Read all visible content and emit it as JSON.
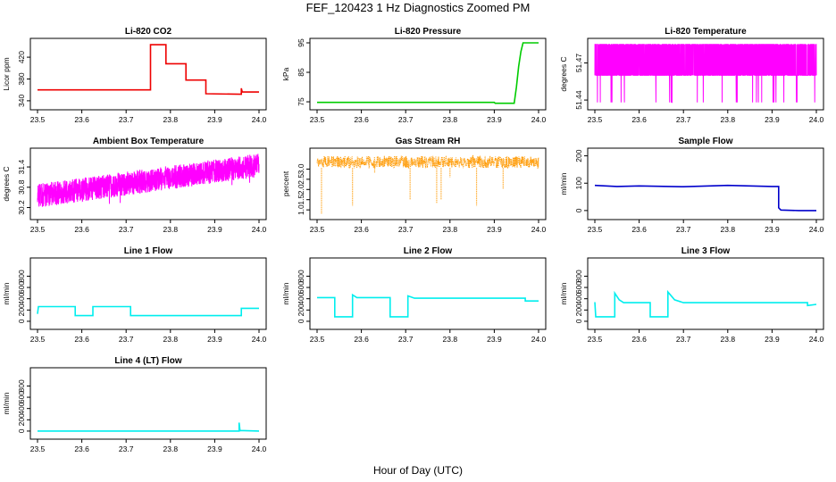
{
  "figure": {
    "title": "FEF_120423  1 Hz Diagnostics Zoomed PM",
    "xlabel": "Hour of Day (UTC)"
  },
  "colors": {
    "red": "#ee0000",
    "green": "#00cc00",
    "magenta": "#ff00ff",
    "orange": "#ff9900",
    "blue": "#0000cc",
    "cyan": "#00eeee"
  },
  "chart_data": [
    {
      "id": "co2",
      "type": "line",
      "title": "Li-820 CO2",
      "ylabel": "Licor ppm",
      "color_key": "red",
      "xlim": [
        23.5,
        24.0
      ],
      "ylim": [
        330,
        448
      ],
      "x_ticks": [
        "23.5",
        "23.6",
        "23.7",
        "23.8",
        "23.9",
        "24.0"
      ],
      "y_ticks": [
        "340",
        "380",
        "420"
      ],
      "style": "step",
      "series": [
        [
          23.5,
          360
        ],
        [
          23.755,
          360
        ],
        [
          23.755,
          443
        ],
        [
          23.79,
          443
        ],
        [
          23.79,
          408
        ],
        [
          23.835,
          408
        ],
        [
          23.835,
          380
        ],
        [
          23.835,
          378
        ],
        [
          23.88,
          378
        ],
        [
          23.88,
          353
        ],
        [
          23.96,
          352
        ],
        [
          23.96,
          363
        ],
        [
          23.962,
          356
        ],
        [
          24.0,
          356
        ]
      ]
    },
    {
      "id": "pressure",
      "type": "line",
      "title": "Li-820 Pressure",
      "ylabel": "kPa",
      "color_key": "green",
      "xlim": [
        23.5,
        24.0
      ],
      "ylim": [
        73.5,
        95.3
      ],
      "x_ticks": [
        "23.5",
        "23.6",
        "23.7",
        "23.8",
        "23.9",
        "24.0"
      ],
      "y_ticks": [
        "75",
        "85",
        "95"
      ],
      "style": "step",
      "series": [
        [
          23.5,
          74.8
        ],
        [
          23.9,
          74.8
        ],
        [
          23.902,
          74.5
        ],
        [
          23.945,
          74.5
        ],
        [
          23.95,
          80
        ],
        [
          23.955,
          87
        ],
        [
          23.96,
          92
        ],
        [
          23.965,
          95
        ],
        [
          24.0,
          95
        ]
      ]
    },
    {
      "id": "licor-temp",
      "type": "line",
      "title": "Li-820 Temperature",
      "ylabel": "degrees C",
      "color_key": "magenta",
      "xlim": [
        23.5,
        24.0
      ],
      "ylim": [
        51.435,
        51.487
      ],
      "x_ticks": [
        "23.5",
        "23.6",
        "23.7",
        "23.8",
        "23.9",
        "24.0"
      ],
      "y_ticks": [
        "51.44",
        "51.47"
      ],
      "style": "noise",
      "noise": {
        "lo": 51.46,
        "hi": 51.485,
        "dip": 51.438,
        "n": 1800,
        "dip_rate": 0.012
      }
    },
    {
      "id": "ambient-temp",
      "type": "line",
      "title": "Ambient Box Temperature",
      "ylabel": "degrees C",
      "color_key": "magenta",
      "xlim": [
        23.5,
        24.0
      ],
      "ylim": [
        29.95,
        31.85
      ],
      "x_ticks": [
        "23.5",
        "23.6",
        "23.7",
        "23.8",
        "23.9",
        "24.0"
      ],
      "y_ticks": [
        "30.2",
        "30.8",
        "31.4"
      ],
      "style": "noise",
      "noise": {
        "start": 30.55,
        "end": 31.45,
        "band": 0.35,
        "n": 1800,
        "dip": 0.35,
        "dip_rate": 0.02
      }
    },
    {
      "id": "rh",
      "type": "scatter",
      "title": "Gas Stream RH",
      "ylabel": "percent",
      "color_key": "orange",
      "xlim": [
        23.5,
        24.0
      ],
      "ylim": [
        0.7,
        3.85
      ],
      "x_ticks": [
        "23.5",
        "23.6",
        "23.7",
        "23.8",
        "23.9",
        "24.0"
      ],
      "y_ticks": [
        "1.0",
        "1.5",
        "2.0",
        "2.5",
        "3.0"
      ],
      "style": "noise",
      "noise": {
        "lo": 3.05,
        "hi": 3.65,
        "n": 900
      },
      "dips": [
        [
          23.51,
          0.8
        ],
        [
          23.58,
          1.2
        ],
        [
          23.71,
          1.5
        ],
        [
          23.77,
          1.3
        ],
        [
          23.78,
          1.5
        ],
        [
          23.86,
          1.2
        ],
        [
          23.92,
          2.0
        ],
        [
          23.63,
          2.8
        ],
        [
          23.8,
          2.6
        ]
      ]
    },
    {
      "id": "sample-flow",
      "type": "line",
      "title": "Sample Flow",
      "ylabel": "ml/min",
      "color_key": "blue",
      "xlim": [
        23.5,
        24.0
      ],
      "ylim": [
        -20,
        215
      ],
      "x_ticks": [
        "23.5",
        "23.6",
        "23.7",
        "23.8",
        "23.9",
        "24.0"
      ],
      "y_ticks": [
        "0",
        "100",
        "200"
      ],
      "style": "step",
      "series": [
        [
          23.5,
          92
        ],
        [
          23.55,
          88
        ],
        [
          23.6,
          90
        ],
        [
          23.7,
          87
        ],
        [
          23.8,
          92
        ],
        [
          23.9,
          88
        ],
        [
          23.915,
          88
        ],
        [
          23.915,
          10
        ],
        [
          23.92,
          2
        ],
        [
          23.96,
          0
        ],
        [
          24.0,
          0
        ]
      ]
    },
    {
      "id": "line1-flow",
      "type": "line",
      "title": "Line 1 Flow",
      "ylabel": "ml/min",
      "color_key": "cyan",
      "xlim": [
        23.5,
        24.0
      ],
      "ylim": [
        -80,
        1060
      ],
      "x_ticks": [
        "23.5",
        "23.6",
        "23.7",
        "23.8",
        "23.9",
        "24.0"
      ],
      "y_ticks": [
        "0",
        "200",
        "400",
        "600",
        "800"
      ],
      "style": "step",
      "series": [
        [
          23.5,
          130
        ],
        [
          23.502,
          260
        ],
        [
          23.585,
          260
        ],
        [
          23.585,
          100
        ],
        [
          23.625,
          100
        ],
        [
          23.625,
          260
        ],
        [
          23.71,
          260
        ],
        [
          23.71,
          100
        ],
        [
          23.96,
          100
        ],
        [
          23.96,
          230
        ],
        [
          24.0,
          230
        ]
      ]
    },
    {
      "id": "line2-flow",
      "type": "line",
      "title": "Line 2 Flow",
      "ylabel": "ml/min",
      "color_key": "cyan",
      "xlim": [
        23.5,
        24.0
      ],
      "ylim": [
        -80,
        1060
      ],
      "x_ticks": [
        "23.5",
        "23.6",
        "23.7",
        "23.8",
        "23.9",
        "24.0"
      ],
      "y_ticks": [
        "0",
        "200",
        "400",
        "600",
        "800"
      ],
      "style": "step",
      "series": [
        [
          23.5,
          420
        ],
        [
          23.54,
          420
        ],
        [
          23.54,
          80
        ],
        [
          23.58,
          80
        ],
        [
          23.58,
          470
        ],
        [
          23.59,
          420
        ],
        [
          23.665,
          420
        ],
        [
          23.665,
          80
        ],
        [
          23.705,
          80
        ],
        [
          23.705,
          450
        ],
        [
          23.72,
          410
        ],
        [
          23.97,
          410
        ],
        [
          23.97,
          360
        ],
        [
          24.0,
          360
        ]
      ]
    },
    {
      "id": "line3-flow",
      "type": "line",
      "title": "Line 3 Flow",
      "ylabel": "ml/min",
      "color_key": "cyan",
      "xlim": [
        23.5,
        24.0
      ],
      "ylim": [
        -80,
        1060
      ],
      "x_ticks": [
        "23.5",
        "23.6",
        "23.7",
        "23.8",
        "23.9",
        "24.0"
      ],
      "y_ticks": [
        "0",
        "200",
        "400",
        "600",
        "800"
      ],
      "style": "step",
      "series": [
        [
          23.5,
          340
        ],
        [
          23.502,
          80
        ],
        [
          23.545,
          80
        ],
        [
          23.545,
          500
        ],
        [
          23.555,
          380
        ],
        [
          23.565,
          330
        ],
        [
          23.59,
          330
        ],
        [
          23.625,
          330
        ],
        [
          23.625,
          80
        ],
        [
          23.665,
          80
        ],
        [
          23.665,
          520
        ],
        [
          23.68,
          380
        ],
        [
          23.7,
          330
        ],
        [
          23.98,
          330
        ],
        [
          23.98,
          280
        ],
        [
          24.0,
          300
        ]
      ]
    },
    {
      "id": "line4-flow",
      "type": "line",
      "title": "Line 4 (LT) Flow",
      "ylabel": "ml/min",
      "color_key": "cyan",
      "xlim": [
        23.5,
        24.0
      ],
      "ylim": [
        -80,
        1060
      ],
      "x_ticks": [
        "23.5",
        "23.6",
        "23.7",
        "23.8",
        "23.9",
        "24.0"
      ],
      "y_ticks": [
        "0",
        "200",
        "400",
        "600",
        "800"
      ],
      "style": "step",
      "series": [
        [
          23.5,
          0
        ],
        [
          23.955,
          0
        ],
        [
          23.955,
          150
        ],
        [
          23.957,
          10
        ],
        [
          24.0,
          0
        ]
      ]
    }
  ]
}
